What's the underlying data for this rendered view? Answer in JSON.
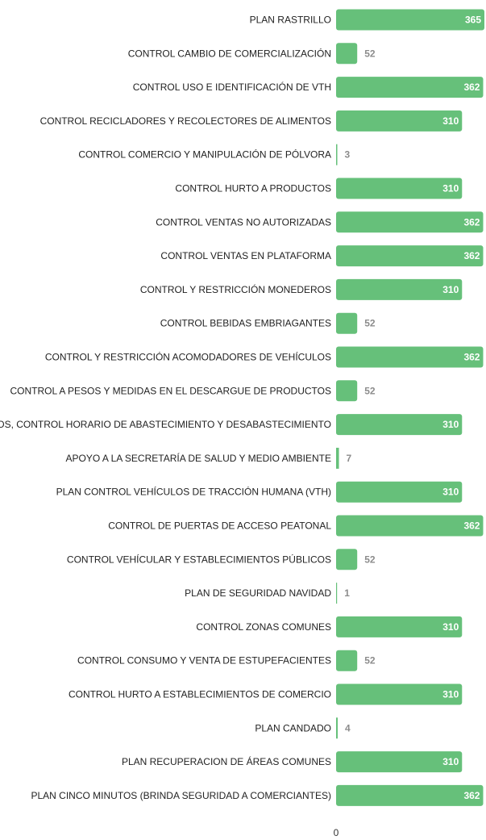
{
  "chart_data": {
    "type": "bar",
    "orientation": "horizontal",
    "categories": [
      "PLAN RASTRILLO",
      "CONTROL CAMBIO DE COMERCIALIZACIÓN",
      "CONTROL USO E IDENTIFICACIÓN DE VTH",
      "CONTROL RECICLADORES Y RECOLECTORES DE ALIMENTOS",
      "CONTROL COMERCIO Y MANIPULACIÓN DE PÓLVORA",
      "CONTROL HURTO A PRODUCTOS",
      "CONTROL VENTAS NO AUTORIZADAS",
      "CONTROL VENTAS EN PLATAFORMA",
      "CONTROL Y RESTRICCIÓN MONEDEROS",
      "CONTROL BEBIDAS EMBRIAGANTES",
      "CONTROL Y RESTRICCIÓN ACOMODADORES DE VEHÍCULOS",
      "CONTROL A PESOS Y MEDIDAS EN EL DESCARGUE DE PRODUCTOS",
      "DESPEJE DE ALEROS, CONTROL HORARIO DE ABASTECIMIENTO Y DESABASTECIMIENTO",
      "APOYO A LA SECRETARÍA DE SALUD Y MEDIO AMBIENTE",
      "PLAN CONTROL VEHÍCULOS DE TRACCIÓN HUMANA (VTH)",
      "CONTROL DE PUERTAS DE ACCESO PEATONAL",
      "CONTROL VEHÍCULAR Y ESTABLECIMIENTOS PÚBLICOS",
      "PLAN DE SEGURIDAD NAVIDAD",
      "CONTROL ZONAS COMUNES",
      "CONTROL CONSUMO Y VENTA DE ESTUPEFACIENTES",
      "CONTROL HURTO A ESTABLECIMIENTOS DE COMERCIO",
      "PLAN CANDADO",
      "PLAN RECUPERACION DE ÁREAS COMUNES",
      "PLAN CINCO MINUTOS (BRINDA SEGURIDAD A COMERCIANTES)"
    ],
    "values": [
      365,
      52,
      362,
      310,
      3,
      310,
      362,
      362,
      310,
      52,
      362,
      52,
      310,
      7,
      310,
      362,
      52,
      1,
      310,
      52,
      310,
      4,
      310,
      362
    ],
    "x_ticks": [
      "0"
    ],
    "xlim": [
      0,
      365
    ],
    "bar_color": "#66c07a",
    "label_color_inside": "#ffffff",
    "label_color_outside": "#8c8c8c",
    "grid": false,
    "legend": "none"
  }
}
